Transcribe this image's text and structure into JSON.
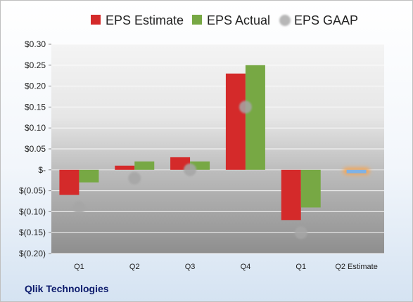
{
  "company": "Qlik Technologies",
  "colors": {
    "estimate": "#d42a2a",
    "actual": "#77a844",
    "gaap": "#a6a6a6",
    "future_estimate": "#7fb2e5",
    "future_glow": "#f5a655"
  },
  "chart_data": {
    "type": "bar",
    "title": "",
    "xlabel": "",
    "ylabel": "",
    "ylim": [
      -0.2,
      0.3
    ],
    "y_ticks": [
      0.3,
      0.25,
      0.2,
      0.15,
      0.1,
      0.05,
      0,
      -0.05,
      -0.1,
      -0.15,
      -0.2
    ],
    "y_tick_labels": [
      "$0.30",
      "$0.25",
      "$0.20",
      "$0.15",
      "$0.10",
      "$0.05",
      "$-",
      "$(0.05)",
      "$(0.10)",
      "$(0.15)",
      "$(0.20)"
    ],
    "categories": [
      "Q1",
      "Q2",
      "Q3",
      "Q4",
      "Q1",
      "Q2 Estimate"
    ],
    "grid": true,
    "legend_position": "top",
    "series": [
      {
        "name": "EPS Estimate",
        "kind": "bar",
        "values": [
          -0.06,
          0.01,
          0.03,
          0.23,
          -0.12,
          null
        ]
      },
      {
        "name": "EPS Actual",
        "kind": "bar",
        "values": [
          -0.03,
          0.02,
          0.02,
          0.25,
          -0.09,
          null
        ]
      },
      {
        "name": "EPS GAAP",
        "kind": "marker",
        "values": [
          -0.09,
          -0.02,
          0.0,
          0.15,
          -0.15,
          null
        ]
      }
    ],
    "forecast": {
      "category_index": 5,
      "value": -0.005
    }
  }
}
